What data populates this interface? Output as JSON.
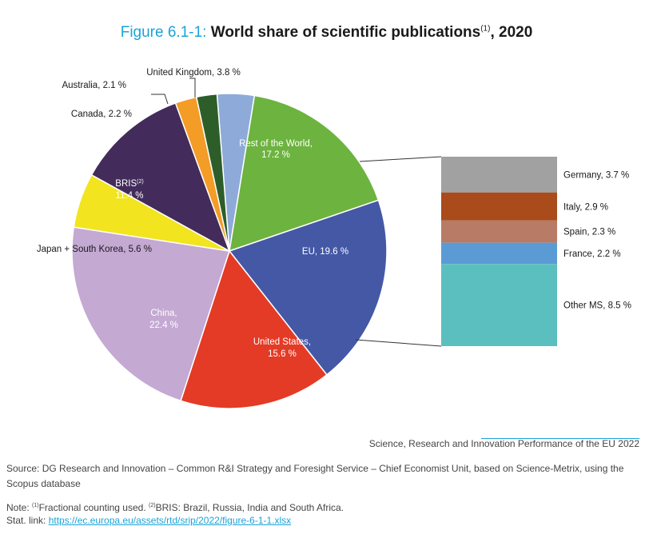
{
  "title": {
    "figure_label": "Figure 6.1-1:",
    "text": "World share of scientific publications",
    "footnote_marker": "(1)",
    "year": ", 2020"
  },
  "chart_data": {
    "type": "pie",
    "slices": [
      {
        "label": "United Kingdom, 3.8 %",
        "value": 3.8,
        "color": "#8eaad8"
      },
      {
        "label": "Rest of the World, 17.2 %",
        "value": 17.2,
        "color": "#6db33f"
      },
      {
        "label": "EU, 19.6 %",
        "value": 19.6,
        "color": "#4458a6"
      },
      {
        "label": "United States, 15.6 %",
        "value": 15.6,
        "color": "#e33b26"
      },
      {
        "label": "China, 22.4 %",
        "value": 22.4,
        "color": "#c4a9d3"
      },
      {
        "label": "Japan + South Korea, 5.6 %",
        "value": 5.6,
        "color": "#f2e41e"
      },
      {
        "label": "BRIS(2), 11.4 %",
        "value": 11.4,
        "color": "#432b5b"
      },
      {
        "label": "Canada, 2.2 %",
        "value": 2.2,
        "color": "#f39c26"
      },
      {
        "label": "Australia, 2.1 %",
        "value": 2.1,
        "color": "#2d5e2a"
      }
    ],
    "labels": {
      "uk": "United Kingdom, 3.8 %",
      "row_1": "Rest of the World,",
      "row_2": "17.2 %",
      "eu": "EU, 19.6 %",
      "us_1": "United States,",
      "us_2": "15.6 %",
      "china_1": "China,",
      "china_2": "22.4 %",
      "jsk": "Japan + South Korea, 5.6 %",
      "bris_name": "BRIS",
      "bris_sup": "(2)",
      "bris_2": "11.4 %",
      "canada": "Canada, 2.2 %",
      "australia": "Australia, 2.1 %"
    },
    "breakdown": {
      "of": "EU",
      "segments": [
        {
          "label": "Germany, 3.7 %",
          "value": 3.7,
          "color": "#a1a1a1"
        },
        {
          "label": "Italy, 2.9 %",
          "value": 2.9,
          "color": "#a94b1b"
        },
        {
          "label": "Spain, 2.3 %",
          "value": 2.3,
          "color": "#b77b66"
        },
        {
          "label": "France, 2.2 %",
          "value": 2.2,
          "color": "#5b9bd5"
        },
        {
          "label": "Other MS, 8.5 %",
          "value": 8.5,
          "color": "#5bbfbf"
        }
      ]
    }
  },
  "footer": {
    "publisher": "Science, Research and Innovation Performance of the EU 2022",
    "source": "Source: DG Research and Innovation – Common R&I Strategy and Foresight Service – Chief Economist Unit, based on Science-Metrix, using the Scopus database",
    "note_prefix": "Note: ",
    "note_m1": "(1)",
    "note_t1": "Fractional counting used. ",
    "note_m2": "(2)",
    "note_t2": "BRIS: Brazil, Russia, India and South Africa.",
    "stat_label": "Stat. link: ",
    "stat_link": "https://ec.europa.eu/assets/rtd/srip/2022/figure-6-1-1.xlsx"
  }
}
